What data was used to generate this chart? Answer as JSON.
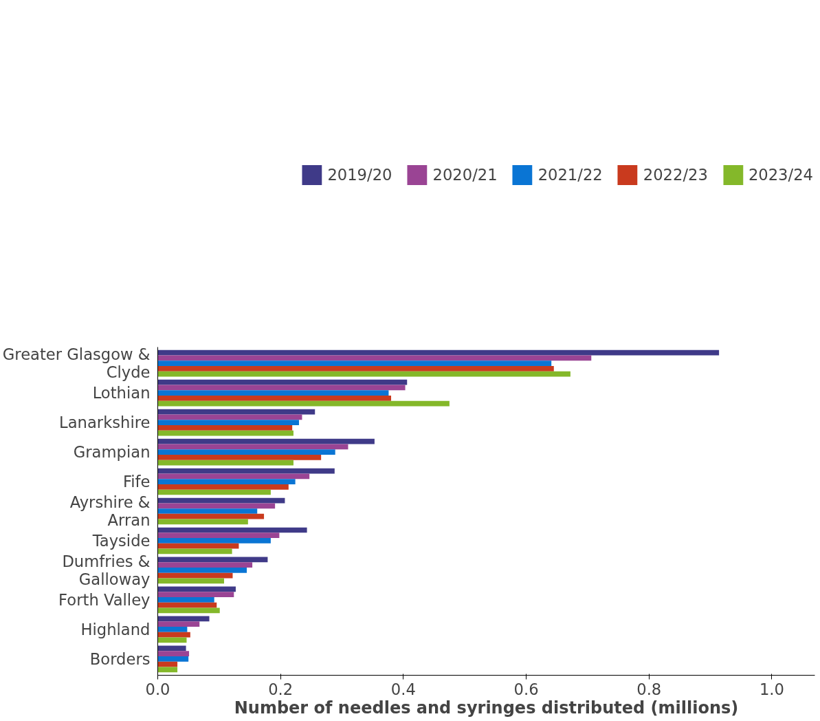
{
  "chart_data": {
    "type": "bar",
    "orientation": "horizontal",
    "xlabel": "Number of needles and syringes distributed (millions)",
    "categories": [
      "Greater Glasgow & Clyde",
      "Lothian",
      "Lanarkshire",
      "Grampian",
      "Fife",
      "Ayrshire & Arran",
      "Tayside",
      "Dumfries & Galloway",
      "Forth Valley",
      "Highland",
      "Borders"
    ],
    "series": [
      {
        "name": "2019/20",
        "color": "#3f3a88",
        "values": [
          0.914,
          0.406,
          0.256,
          0.353,
          0.288,
          0.207,
          0.243,
          0.179,
          0.127,
          0.084,
          0.046
        ]
      },
      {
        "name": "2020/21",
        "color": "#9a4494",
        "values": [
          0.706,
          0.403,
          0.235,
          0.31,
          0.247,
          0.191,
          0.198,
          0.154,
          0.124,
          0.068,
          0.051
        ]
      },
      {
        "name": "2021/22",
        "color": "#0a75d4",
        "values": [
          0.641,
          0.376,
          0.23,
          0.289,
          0.224,
          0.162,
          0.184,
          0.145,
          0.092,
          0.048,
          0.05
        ]
      },
      {
        "name": "2022/23",
        "color": "#c93a1e",
        "values": [
          0.645,
          0.38,
          0.219,
          0.266,
          0.213,
          0.173,
          0.132,
          0.122,
          0.096,
          0.053,
          0.032
        ]
      },
      {
        "name": "2023/24",
        "color": "#84b82a",
        "values": [
          0.672,
          0.475,
          0.221,
          0.221,
          0.184,
          0.147,
          0.121,
          0.108,
          0.101,
          0.047,
          0.032
        ]
      }
    ],
    "xlim": [
      0,
      1.07
    ],
    "xticks": [
      {
        "value": 0,
        "label": "0.0"
      },
      {
        "value": 0.2,
        "label": "0.2"
      },
      {
        "value": 0.4,
        "label": "0.4"
      },
      {
        "value": 0.6,
        "label": "0.6"
      },
      {
        "value": 0.8,
        "label": "0.8"
      },
      {
        "value": 1.0,
        "label": "1.0"
      }
    ],
    "grid": false,
    "legend": "top"
  }
}
